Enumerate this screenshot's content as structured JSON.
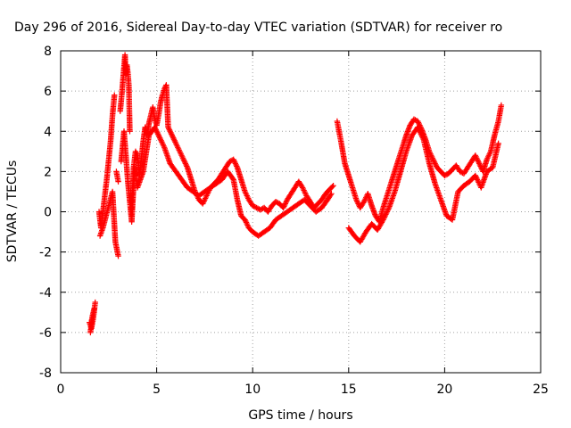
{
  "chart_data": {
    "type": "scatter",
    "title": "Day 296 of 2016, Sidereal Day-to-day VTEC variation (SDTVAR) for receiver ro",
    "xlabel": "GPS time / hours",
    "ylabel": "SDTVAR / TECUs",
    "xlim": [
      0,
      25
    ],
    "ylim": [
      -8,
      8
    ],
    "xticks": [
      "0",
      "5",
      "10",
      "15",
      "20",
      "25"
    ],
    "yticks": [
      "-8",
      "-6",
      "-4",
      "-2",
      "0",
      "2",
      "4",
      "6",
      "8"
    ],
    "grid": true,
    "marker": "+",
    "color": "#ff0000",
    "series": [
      {
        "x": [
          1.5,
          1.6,
          1.7,
          1.8,
          2.0,
          2.1,
          2.4,
          2.6,
          2.7,
          2.8,
          2.9,
          3.0,
          3.1,
          3.2,
          3.3,
          3.35,
          3.4,
          3.45,
          3.5,
          3.55,
          3.6,
          3.65,
          3.7,
          3.8,
          3.9,
          4.0,
          4.1,
          4.2,
          4.3,
          4.4,
          4.5,
          4.6,
          4.7,
          4.8,
          4.9,
          5.0,
          5.1,
          5.2,
          5.3,
          5.4,
          5.5,
          5.6,
          5.8,
          6.0,
          6.2,
          6.4,
          6.6,
          6.8,
          7.0,
          7.2,
          7.4,
          7.6,
          7.8,
          8.0,
          8.2,
          8.4,
          8.6,
          8.8,
          9.0,
          9.2,
          9.4,
          9.6,
          9.8,
          10.0,
          10.2,
          10.4,
          10.6,
          10.8,
          11.0,
          11.2,
          11.4,
          11.6,
          11.8,
          12.0,
          12.2,
          12.4,
          12.6,
          12.8,
          13.0,
          13.2,
          13.4,
          13.6,
          13.8,
          14.0,
          14.2,
          14.4,
          14.6,
          14.8,
          15.0,
          15.2,
          15.4,
          15.6,
          15.8,
          16.0,
          16.2,
          16.4,
          16.6,
          16.8,
          17.0,
          17.2,
          17.4,
          17.6,
          17.8,
          18.0,
          18.2,
          18.4,
          18.6,
          18.8,
          19.0,
          19.2,
          19.4,
          19.6,
          19.8,
          20.0,
          20.2,
          20.4,
          20.6,
          20.8,
          21.0,
          21.2,
          21.4,
          21.6,
          21.8,
          22.0,
          22.2,
          22.4,
          22.6,
          22.8,
          22.95
        ],
        "y": [
          -5.5,
          -5.8,
          -5.3,
          -4.5,
          0.0,
          -0.8,
          1.6,
          3.5,
          4.8,
          5.8,
          2.0,
          1.5,
          5.0,
          6.0,
          7.2,
          7.8,
          6.8,
          7.3,
          6.9,
          6.3,
          4.0,
          1.0,
          0.0,
          2.2,
          3.0,
          2.8,
          1.8,
          2.6,
          3.5,
          4.2,
          3.8,
          4.4,
          4.8,
          5.2,
          4.6,
          4.3,
          4.8,
          5.4,
          5.8,
          6.1,
          6.3,
          4.2,
          3.8,
          3.4,
          3.0,
          2.6,
          2.2,
          1.6,
          1.0,
          0.6,
          0.4,
          0.8,
          1.2,
          1.4,
          1.6,
          1.9,
          2.2,
          2.5,
          2.6,
          2.2,
          1.6,
          1.0,
          0.6,
          0.3,
          0.2,
          0.1,
          0.2,
          0.0,
          0.3,
          0.5,
          0.4,
          0.2,
          0.6,
          0.9,
          1.2,
          1.5,
          1.2,
          0.8,
          0.5,
          0.2,
          0.4,
          0.6,
          0.9,
          1.1,
          1.3,
          4.5,
          3.5,
          2.4,
          1.8,
          1.2,
          0.6,
          0.2,
          0.5,
          0.9,
          0.3,
          -0.2,
          -0.5,
          0.2,
          0.8,
          1.4,
          2.0,
          2.6,
          3.2,
          3.8,
          4.3,
          4.6,
          4.5,
          4.1,
          3.6,
          3.0,
          2.6,
          2.2,
          2.0,
          1.8,
          1.9,
          2.1,
          2.3,
          2.0,
          1.9,
          2.2,
          2.5,
          2.8,
          2.4,
          2.0,
          2.6,
          3.0,
          3.8,
          4.5,
          5.3
        ]
      },
      {
        "x": [
          1.55,
          1.65,
          1.75,
          2.05,
          2.2,
          2.7,
          2.85,
          3.0,
          3.15,
          3.3,
          3.5,
          3.7,
          3.85,
          4.0,
          4.3,
          4.6,
          4.9,
          5.1,
          5.4,
          5.7,
          6.0,
          6.3,
          6.6,
          6.9,
          7.2,
          7.5,
          7.8,
          8.1,
          8.4,
          8.7,
          9.0,
          9.2,
          9.4,
          9.6,
          9.8,
          10.0,
          10.3,
          10.6,
          10.9,
          11.2,
          11.5,
          11.8,
          12.1,
          12.4,
          12.7,
          13.0,
          13.3,
          13.6,
          13.9,
          14.1,
          15.0,
          15.3,
          15.6,
          15.9,
          16.2,
          16.5,
          16.8,
          17.1,
          17.4,
          17.7,
          18.0,
          18.3,
          18.6,
          18.9,
          19.2,
          19.5,
          19.8,
          20.1,
          20.4,
          20.7,
          21.0,
          21.3,
          21.6,
          21.9,
          22.2,
          22.5,
          22.8
        ],
        "y": [
          -6.0,
          -5.2,
          -4.8,
          -1.2,
          -0.8,
          1.0,
          -1.5,
          -2.2,
          2.5,
          4.0,
          1.5,
          -0.5,
          2.2,
          1.2,
          2.0,
          3.8,
          4.2,
          3.8,
          3.2,
          2.4,
          2.0,
          1.6,
          1.2,
          1.0,
          0.8,
          1.0,
          1.2,
          1.4,
          1.6,
          2.0,
          1.6,
          0.6,
          -0.2,
          -0.4,
          -0.8,
          -1.0,
          -1.2,
          -1.0,
          -0.8,
          -0.4,
          -0.2,
          0.0,
          0.2,
          0.4,
          0.6,
          0.3,
          0.0,
          0.2,
          0.6,
          0.9,
          -0.8,
          -1.2,
          -1.5,
          -1.0,
          -0.6,
          -0.9,
          -0.4,
          0.2,
          1.0,
          2.0,
          3.0,
          3.8,
          4.2,
          3.6,
          2.4,
          1.4,
          0.6,
          -0.2,
          -0.4,
          1.0,
          1.3,
          1.5,
          1.8,
          1.2,
          2.0,
          2.2,
          3.4
        ]
      }
    ]
  }
}
